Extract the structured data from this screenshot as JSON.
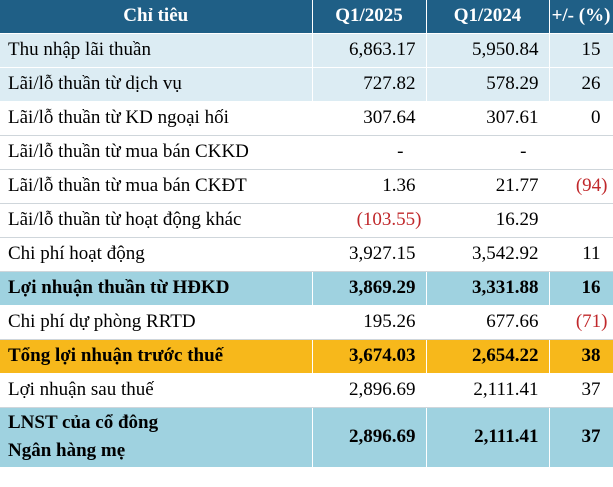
{
  "table": {
    "headers": [
      "Chỉ tiêu",
      "Q1/2025",
      "Q1/2024",
      "+/- (%)"
    ],
    "rows": [
      {
        "label": "Thu nhập lãi thuần",
        "q1_2025": "6,863.17",
        "q1_2024": "5,950.84",
        "change": "15"
      },
      {
        "label": "Lãi/lỗ thuần từ dịch vụ",
        "q1_2025": "727.82",
        "q1_2024": "578.29",
        "change": "26"
      },
      {
        "label": "Lãi/lỗ thuần từ KD ngoại hối",
        "q1_2025": "307.64",
        "q1_2024": "307.61",
        "change": "0"
      },
      {
        "label": "Lãi/lỗ thuần từ mua bán CKKD",
        "q1_2025": "-",
        "q1_2024": "-",
        "change": ""
      },
      {
        "label": "Lãi/lỗ thuần từ mua bán CKĐT",
        "q1_2025": "1.36",
        "q1_2024": "21.77",
        "change": "(94)"
      },
      {
        "label": "Lãi/lỗ thuần từ hoạt động khác",
        "q1_2025": "(103.55)",
        "q1_2024": "16.29",
        "change": ""
      },
      {
        "label": "Chi phí hoạt động",
        "q1_2025": "3,927.15",
        "q1_2024": "3,542.92",
        "change": "11"
      },
      {
        "label": "Lợi nhuận thuần từ HĐKD",
        "q1_2025": "3,869.29",
        "q1_2024": "3,331.88",
        "change": "16"
      },
      {
        "label": "Chi phí dự phòng RRTD",
        "q1_2025": "195.26",
        "q1_2024": "677.66",
        "change": "(71)"
      },
      {
        "label": "Tổng lợi nhuận trước thuế",
        "q1_2025": "3,674.03",
        "q1_2024": "2,654.22",
        "change": "38"
      },
      {
        "label": "Lợi nhuận sau thuế",
        "q1_2025": "2,896.69",
        "q1_2024": "2,111.41",
        "change": "37"
      },
      {
        "label_line1": "LNST của cổ đông",
        "label_line2": "Ngân hàng mẹ",
        "q1_2025": "2,896.69",
        "q1_2024": "2,111.41",
        "change": "37"
      }
    ]
  },
  "colors": {
    "header_bg": "#1f5f86",
    "light_row_bg": "#dcecf3",
    "highlight_teal": "#9fd2e0",
    "highlight_gold": "#f7b81b",
    "negative_text": "#c0282b"
  }
}
